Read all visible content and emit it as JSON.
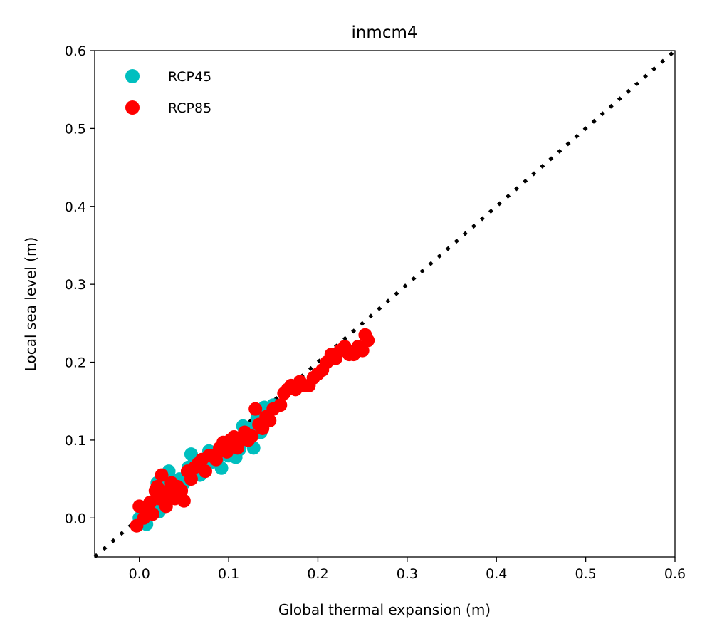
{
  "chart_data": {
    "type": "scatter",
    "title": "inmcm4",
    "xlabel": "Global thermal expansion (m)",
    "ylabel": "Local sea level (m)",
    "xlim": [
      -0.05,
      0.6
    ],
    "ylim": [
      -0.05,
      0.6
    ],
    "xticks": [
      "0.0",
      "0.1",
      "0.2",
      "0.3",
      "0.4",
      "0.5",
      "0.6"
    ],
    "yticks": [
      "0.0",
      "0.1",
      "0.2",
      "0.3",
      "0.4",
      "0.5",
      "0.6"
    ],
    "grid": false,
    "legend_position": "top-left",
    "reference_line": {
      "style": "dotted",
      "color": "#000000",
      "x": [
        -0.05,
        0.6
      ],
      "y": [
        -0.05,
        0.6
      ]
    },
    "series": [
      {
        "name": "RCP45",
        "color": "#00bfbf",
        "points": [
          [
            0.0,
            0.0
          ],
          [
            0.005,
            -0.005
          ],
          [
            0.008,
            -0.008
          ],
          [
            0.012,
            0.015
          ],
          [
            0.018,
            0.02
          ],
          [
            0.02,
            0.045
          ],
          [
            0.025,
            0.05
          ],
          [
            0.028,
            0.035
          ],
          [
            0.03,
            0.03
          ],
          [
            0.033,
            0.06
          ],
          [
            0.035,
            0.04
          ],
          [
            0.038,
            0.045
          ],
          [
            0.04,
            0.03
          ],
          [
            0.045,
            0.05
          ],
          [
            0.05,
            0.045
          ],
          [
            0.055,
            0.065
          ],
          [
            0.058,
            0.082
          ],
          [
            0.062,
            0.075
          ],
          [
            0.068,
            0.055
          ],
          [
            0.072,
            0.07
          ],
          [
            0.078,
            0.086
          ],
          [
            0.082,
            0.072
          ],
          [
            0.088,
            0.078
          ],
          [
            0.092,
            0.064
          ],
          [
            0.096,
            0.09
          ],
          [
            0.1,
            0.08
          ],
          [
            0.105,
            0.1
          ],
          [
            0.108,
            0.078
          ],
          [
            0.112,
            0.088
          ],
          [
            0.116,
            0.118
          ],
          [
            0.12,
            0.1
          ],
          [
            0.125,
            0.115
          ],
          [
            0.128,
            0.09
          ],
          [
            0.132,
            0.128
          ],
          [
            0.136,
            0.11
          ],
          [
            0.14,
            0.142
          ],
          [
            0.145,
            0.125
          ],
          [
            0.15,
            0.145
          ],
          [
            0.018,
            0.01
          ],
          [
            0.022,
            0.008
          ]
        ]
      },
      {
        "name": "RCP85",
        "color": "#ff0000",
        "points": [
          [
            -0.003,
            -0.01
          ],
          [
            0.0,
            0.015
          ],
          [
            0.005,
            0.0
          ],
          [
            0.008,
            0.01
          ],
          [
            0.012,
            0.02
          ],
          [
            0.015,
            0.005
          ],
          [
            0.018,
            0.035
          ],
          [
            0.022,
            0.025
          ],
          [
            0.025,
            0.055
          ],
          [
            0.028,
            0.03
          ],
          [
            0.03,
            0.015
          ],
          [
            0.033,
            0.035
          ],
          [
            0.036,
            0.045
          ],
          [
            0.04,
            0.025
          ],
          [
            0.043,
            0.04
          ],
          [
            0.047,
            0.035
          ],
          [
            0.05,
            0.022
          ],
          [
            0.054,
            0.06
          ],
          [
            0.058,
            0.05
          ],
          [
            0.062,
            0.065
          ],
          [
            0.066,
            0.07
          ],
          [
            0.07,
            0.075
          ],
          [
            0.074,
            0.06
          ],
          [
            0.078,
            0.08
          ],
          [
            0.082,
            0.08
          ],
          [
            0.086,
            0.075
          ],
          [
            0.09,
            0.09
          ],
          [
            0.094,
            0.097
          ],
          [
            0.098,
            0.085
          ],
          [
            0.102,
            0.1
          ],
          [
            0.106,
            0.104
          ],
          [
            0.11,
            0.09
          ],
          [
            0.114,
            0.1
          ],
          [
            0.118,
            0.11
          ],
          [
            0.122,
            0.1
          ],
          [
            0.126,
            0.105
          ],
          [
            0.13,
            0.14
          ],
          [
            0.134,
            0.12
          ],
          [
            0.138,
            0.115
          ],
          [
            0.142,
            0.13
          ],
          [
            0.146,
            0.125
          ],
          [
            0.15,
            0.14
          ],
          [
            0.158,
            0.145
          ],
          [
            0.162,
            0.16
          ],
          [
            0.166,
            0.165
          ],
          [
            0.17,
            0.17
          ],
          [
            0.175,
            0.165
          ],
          [
            0.18,
            0.175
          ],
          [
            0.185,
            0.17
          ],
          [
            0.19,
            0.17
          ],
          [
            0.195,
            0.18
          ],
          [
            0.2,
            0.185
          ],
          [
            0.205,
            0.19
          ],
          [
            0.21,
            0.2
          ],
          [
            0.215,
            0.21
          ],
          [
            0.22,
            0.205
          ],
          [
            0.225,
            0.215
          ],
          [
            0.23,
            0.22
          ],
          [
            0.235,
            0.21
          ],
          [
            0.24,
            0.21
          ],
          [
            0.245,
            0.22
          ],
          [
            0.25,
            0.215
          ],
          [
            0.253,
            0.235
          ],
          [
            0.256,
            0.228
          ],
          [
            0.02,
            0.04
          ]
        ]
      }
    ]
  }
}
